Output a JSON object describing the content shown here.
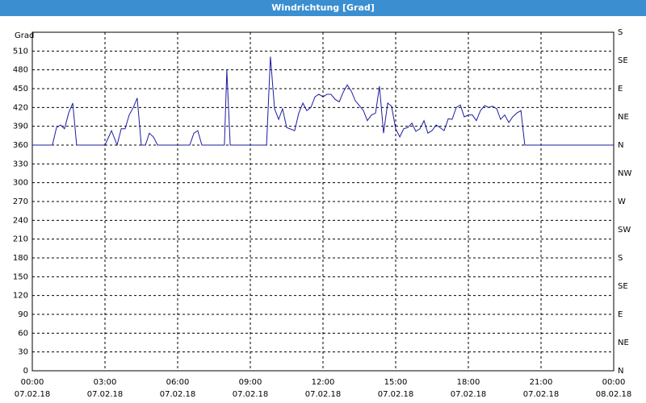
{
  "chart_data": {
    "type": "line",
    "title": "Windrichtung [Grad]",
    "y_label": "Grad",
    "x": [
      0,
      0.83,
      1,
      1.17,
      1.33,
      1.5,
      1.67,
      1.83,
      3,
      3.27,
      3.5,
      3.67,
      3.83,
      4,
      4.17,
      4.33,
      4.5,
      4.67,
      4.83,
      5,
      5.17,
      6.5,
      6.67,
      6.83,
      7,
      7.93,
      8.03,
      8.17,
      9.67,
      9.83,
      10,
      10.17,
      10.33,
      10.5,
      10.83,
      11,
      11.17,
      11.33,
      11.5,
      11.67,
      11.83,
      12,
      12.17,
      12.33,
      12.5,
      12.67,
      12.83,
      13,
      13.17,
      13.33,
      13.67,
      13.83,
      14,
      14.17,
      14.33,
      14.5,
      14.67,
      14.83,
      15,
      15.17,
      15.33,
      15.5,
      15.67,
      15.83,
      16,
      16.17,
      16.33,
      16.5,
      16.67,
      16.83,
      17,
      17.17,
      17.33,
      17.5,
      17.67,
      17.83,
      18,
      18.17,
      18.33,
      18.5,
      18.67,
      18.83,
      19,
      19.17,
      19.33,
      19.5,
      19.67,
      19.83,
      20,
      20.17,
      20.33,
      24
    ],
    "series": [
      {
        "color": "#1c1ca0",
        "values": [
          360,
          360,
          388,
          392,
          386,
          411,
          427,
          360,
          360,
          383,
          360,
          386,
          386,
          408,
          420,
          435,
          360,
          360,
          379,
          373,
          360,
          360,
          379,
          383,
          360,
          360,
          480,
          360,
          360,
          501,
          418,
          401,
          418,
          388,
          383,
          411,
          427,
          415,
          420,
          437,
          441,
          437,
          441,
          441,
          433,
          429,
          444,
          456,
          446,
          431,
          415,
          399,
          408,
          411,
          454,
          379,
          427,
          422,
          386,
          373,
          386,
          388,
          395,
          382,
          386,
          399,
          379,
          383,
          392,
          388,
          383,
          402,
          401,
          420,
          424,
          405,
          408,
          408,
          399,
          415,
          423,
          420,
          422,
          418,
          401,
          408,
          396,
          405,
          411,
          415,
          360,
          360
        ]
      }
    ],
    "xlim": [
      0,
      24
    ],
    "xticks": [
      {
        "value": 0,
        "label": "00:00",
        "date": "07.02.18"
      },
      {
        "value": 3,
        "label": "03:00",
        "date": "07.02.18"
      },
      {
        "value": 6,
        "label": "06:00",
        "date": "07.02.18"
      },
      {
        "value": 9,
        "label": "09:00",
        "date": "07.02.18"
      },
      {
        "value": 12,
        "label": "12:00",
        "date": "07.02.18"
      },
      {
        "value": 15,
        "label": "15:00",
        "date": "07.02.18"
      },
      {
        "value": 18,
        "label": "18:00",
        "date": "07.02.18"
      },
      {
        "value": 21,
        "label": "21:00",
        "date": "07.02.18"
      },
      {
        "value": 24,
        "label": "00:00",
        "date": "08.02.18"
      }
    ],
    "ylim": [
      0,
      540
    ],
    "yticks": [
      0,
      30,
      60,
      90,
      120,
      150,
      180,
      210,
      240,
      270,
      300,
      330,
      360,
      390,
      420,
      450,
      480,
      510
    ],
    "y2lim": [
      0,
      540
    ],
    "y2ticks": [
      {
        "value": 0,
        "label": "N"
      },
      {
        "value": 45,
        "label": "NE"
      },
      {
        "value": 90,
        "label": "E"
      },
      {
        "value": 135,
        "label": "SE"
      },
      {
        "value": 180,
        "label": "S"
      },
      {
        "value": 225,
        "label": "SW"
      },
      {
        "value": 270,
        "label": "W"
      },
      {
        "value": 315,
        "label": "NW"
      },
      {
        "value": 360,
        "label": "N"
      },
      {
        "value": 405,
        "label": "NE"
      },
      {
        "value": 450,
        "label": "E"
      },
      {
        "value": 495,
        "label": "SE"
      },
      {
        "value": 540,
        "label": "S"
      }
    ],
    "grid": true
  }
}
